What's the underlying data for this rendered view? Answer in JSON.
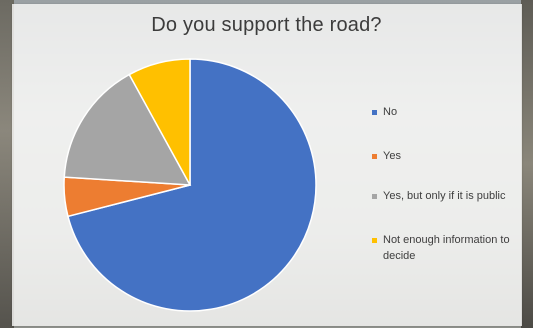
{
  "chart_data": {
    "type": "pie",
    "title": "Do you support the road?",
    "categories": [
      "No",
      "Yes",
      "Yes, but only if it is public",
      "Not enough information to decide"
    ],
    "values": [
      71,
      5,
      16,
      8
    ],
    "colors": [
      "#4472c4",
      "#ed7d31",
      "#a5a5a5",
      "#ffc000"
    ],
    "legend_position": "right"
  }
}
